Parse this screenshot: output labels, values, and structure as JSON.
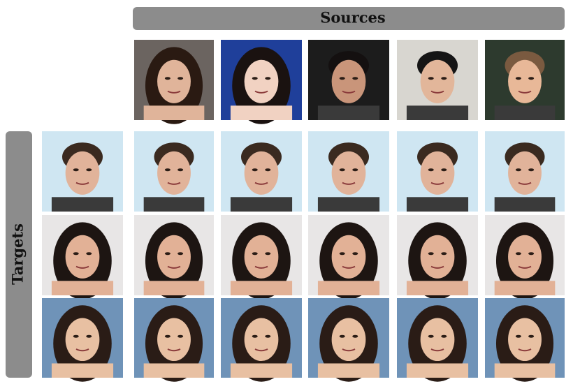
{
  "header": {
    "title": "Sources"
  },
  "sidebar": {
    "title": "Targets"
  }
}
